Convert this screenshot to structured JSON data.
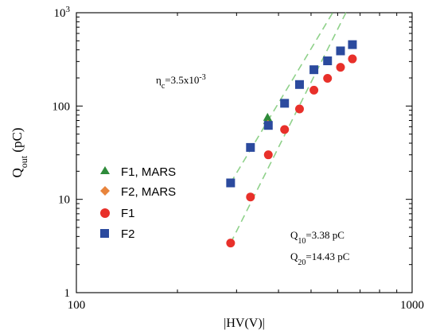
{
  "chart_data": {
    "type": "scatter",
    "xlabel": "|HV(V)|",
    "ylabel_main": "Q",
    "ylabel_sub": "out",
    "ylabel_unit": " (pC)",
    "x_scale": "log",
    "y_scale": "log",
    "xlim": [
      100,
      1000
    ],
    "ylim": [
      1,
      1000
    ],
    "x_ticks": [
      {
        "value": 100,
        "label": "100"
      },
      {
        "value": 1000,
        "label": "1000"
      }
    ],
    "y_ticks": [
      {
        "value": 1,
        "label": "1"
      },
      {
        "value": 10,
        "label": "10"
      },
      {
        "value": 100,
        "label": "100"
      },
      {
        "value": 1000,
        "label": "10",
        "sup": "3"
      }
    ],
    "series": [
      {
        "name": "F1, MARS",
        "marker": "triangle",
        "color": "#2e8b3a",
        "points": [
          [
            371,
            76
          ],
          [
            373,
            73
          ],
          [
            371,
            70
          ]
        ]
      },
      {
        "name": "F2, MARS",
        "marker": "diamond",
        "color": "#e8843c",
        "points": [
          [
            372,
            64
          ]
        ]
      },
      {
        "name": "F1",
        "marker": "circle",
        "color": "#e8302a",
        "points": [
          [
            288,
            3.4
          ],
          [
            330,
            10.6
          ],
          [
            373,
            30
          ],
          [
            417,
            56
          ],
          [
            462,
            93
          ],
          [
            510,
            148
          ],
          [
            560,
            198
          ],
          [
            612,
            260
          ],
          [
            664,
            320
          ]
        ]
      },
      {
        "name": "F2",
        "marker": "square",
        "color": "#2b4a9e",
        "points": [
          [
            288,
            15
          ],
          [
            330,
            36
          ],
          [
            373,
            62
          ],
          [
            417,
            107
          ],
          [
            462,
            170
          ],
          [
            510,
            245
          ],
          [
            560,
            305
          ],
          [
            612,
            390
          ],
          [
            664,
            455
          ]
        ]
      }
    ],
    "fit_lines": [
      {
        "color": "#8fd18a",
        "from": [
          288,
          15
        ],
        "to": [
          580,
          1000
        ]
      },
      {
        "color": "#8fd18a",
        "from": [
          288,
          3.4
        ],
        "to": [
          635,
          1000
        ]
      }
    ],
    "annotations": {
      "eta": {
        "main": "η",
        "sub": "c",
        "rest": "=3.5x10",
        "sup": "-3"
      },
      "q10": {
        "main": "Q",
        "sub": "10",
        "rest": "=3.38 pC"
      },
      "q20": {
        "main": "Q",
        "sub": "20",
        "rest": "=14.43 pC"
      }
    },
    "grid": false,
    "legend_position": "lower-left"
  }
}
